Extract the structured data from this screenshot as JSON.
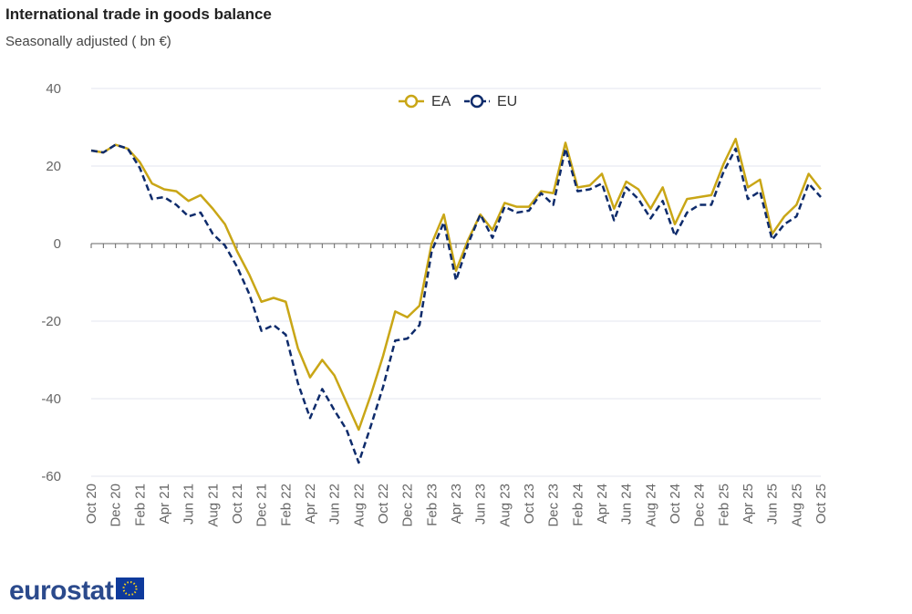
{
  "chart_data": {
    "type": "line",
    "title": "International trade in goods balance",
    "subtitle": "Seasonally adjusted ( bn €)",
    "source": "eurostat",
    "categories": [
      "Oct 20",
      null,
      "Dec 20",
      null,
      "Feb 21",
      null,
      "Apr 21",
      null,
      "Jun 21",
      null,
      "Aug 21",
      null,
      "Oct 21",
      null,
      "Dec 21",
      null,
      "Feb 22",
      null,
      "Apr 22",
      null,
      "Jun 22",
      null,
      "Aug 22",
      null,
      "Oct 22",
      null,
      "Dec 22",
      null,
      "Feb 23",
      null,
      "Apr 23",
      null,
      "Jun 23",
      null,
      "Aug 23",
      null,
      "Oct 23",
      null,
      "Dec 23",
      null,
      "Feb 24",
      null,
      "Apr 24",
      null,
      "Jun 24",
      null,
      "Aug 24",
      null,
      "Oct 24",
      null,
      "Dec 24",
      null,
      "Feb 25",
      null,
      "Apr 25",
      null,
      "Jun 25",
      null,
      "Aug 25",
      null,
      "Oct 25"
    ],
    "series": [
      {
        "name": "EA",
        "color": "#c9a616",
        "dashed": false,
        "values": [
          24,
          23.5,
          25.5,
          24.5,
          21,
          15.5,
          14,
          13.5,
          11,
          12.5,
          9,
          5,
          -2,
          -8,
          -15,
          -14,
          -15,
          -27,
          -34.5,
          -30,
          -34,
          -41,
          -48,
          -39,
          -29,
          -17.5,
          -19,
          -16,
          0,
          7.5,
          -7,
          1,
          7.5,
          3.5,
          10.5,
          9.5,
          9.5,
          13.5,
          13,
          26,
          14.5,
          15,
          18,
          9,
          16,
          14,
          9,
          14.5,
          5,
          11.5,
          12,
          12.5,
          20.5,
          27,
          14.5,
          16.5,
          2.5,
          7,
          10,
          18,
          14
        ]
      },
      {
        "name": "EU",
        "color": "#0e2b6b",
        "dashed": true,
        "values": [
          24,
          23.5,
          25.5,
          24.5,
          19.5,
          11.5,
          12,
          10,
          7,
          8,
          2.5,
          -0.5,
          -6,
          -13,
          -22.5,
          -21,
          -23.5,
          -36,
          -45,
          -37.5,
          -43,
          -48,
          -56.5,
          -47,
          -37,
          -25,
          -24.5,
          -21,
          -2,
          5.5,
          -9.5,
          0,
          7.5,
          1.5,
          9.5,
          8,
          8.5,
          13,
          10,
          24.5,
          13.5,
          14,
          15.5,
          6,
          14.5,
          11.5,
          6.5,
          11,
          2,
          8,
          10,
          10,
          18.5,
          24.5,
          11.5,
          13.5,
          1,
          5,
          7,
          15.5,
          12
        ]
      }
    ],
    "ylim": [
      -60,
      40
    ],
    "yticks": [
      -60,
      -40,
      -20,
      0,
      20,
      40
    ],
    "grid": true,
    "legend": "top"
  }
}
